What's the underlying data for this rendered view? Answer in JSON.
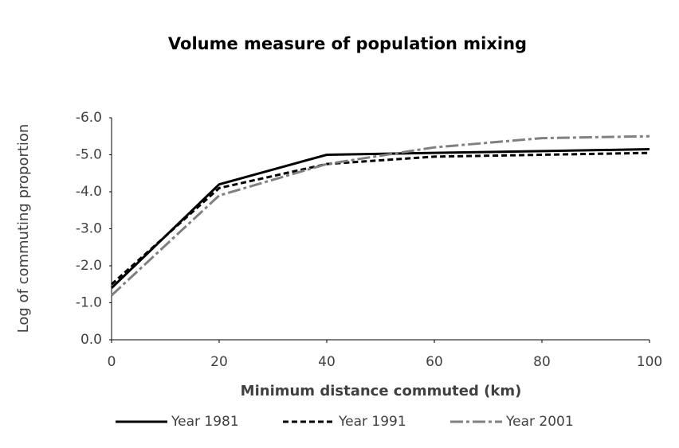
{
  "chart_data": {
    "type": "line",
    "title": "Volume measure of population mixing",
    "x_label": "Minimum distance commuted (km)",
    "y_label": "Log of commuting proportion",
    "x": [
      0,
      20,
      40,
      60,
      80,
      100
    ],
    "series": [
      {
        "name": "Year 1981",
        "color": "#000000",
        "dash": "solid",
        "values": [
          -1.4,
          -4.2,
          -5.0,
          -5.05,
          -5.1,
          -5.15
        ]
      },
      {
        "name": "Year 1991",
        "color": "#000000",
        "dash": "dashed",
        "values": [
          -1.5,
          -4.1,
          -4.75,
          -4.95,
          -5.0,
          -5.05
        ]
      },
      {
        "name": "Year 2001",
        "color": "#808080",
        "dash": "dashdot",
        "values": [
          -1.2,
          -3.9,
          -4.75,
          -5.2,
          -5.45,
          -5.5
        ]
      }
    ],
    "xlim": [
      0,
      100
    ],
    "xticks": [
      0,
      20,
      40,
      60,
      80,
      100
    ],
    "ylim": [
      0,
      -6
    ],
    "yticks": [
      {
        "value": 0,
        "label": "0.0"
      },
      {
        "value": -1,
        "label": "-1.0"
      },
      {
        "value": -2,
        "label": "-2.0"
      },
      {
        "value": -3,
        "label": "-3.0"
      },
      {
        "value": -4,
        "label": "-4.0"
      },
      {
        "value": -5,
        "label": "-5.0"
      },
      {
        "value": -6,
        "label": "-6.0"
      }
    ],
    "grid": false,
    "legend": "bottom"
  }
}
